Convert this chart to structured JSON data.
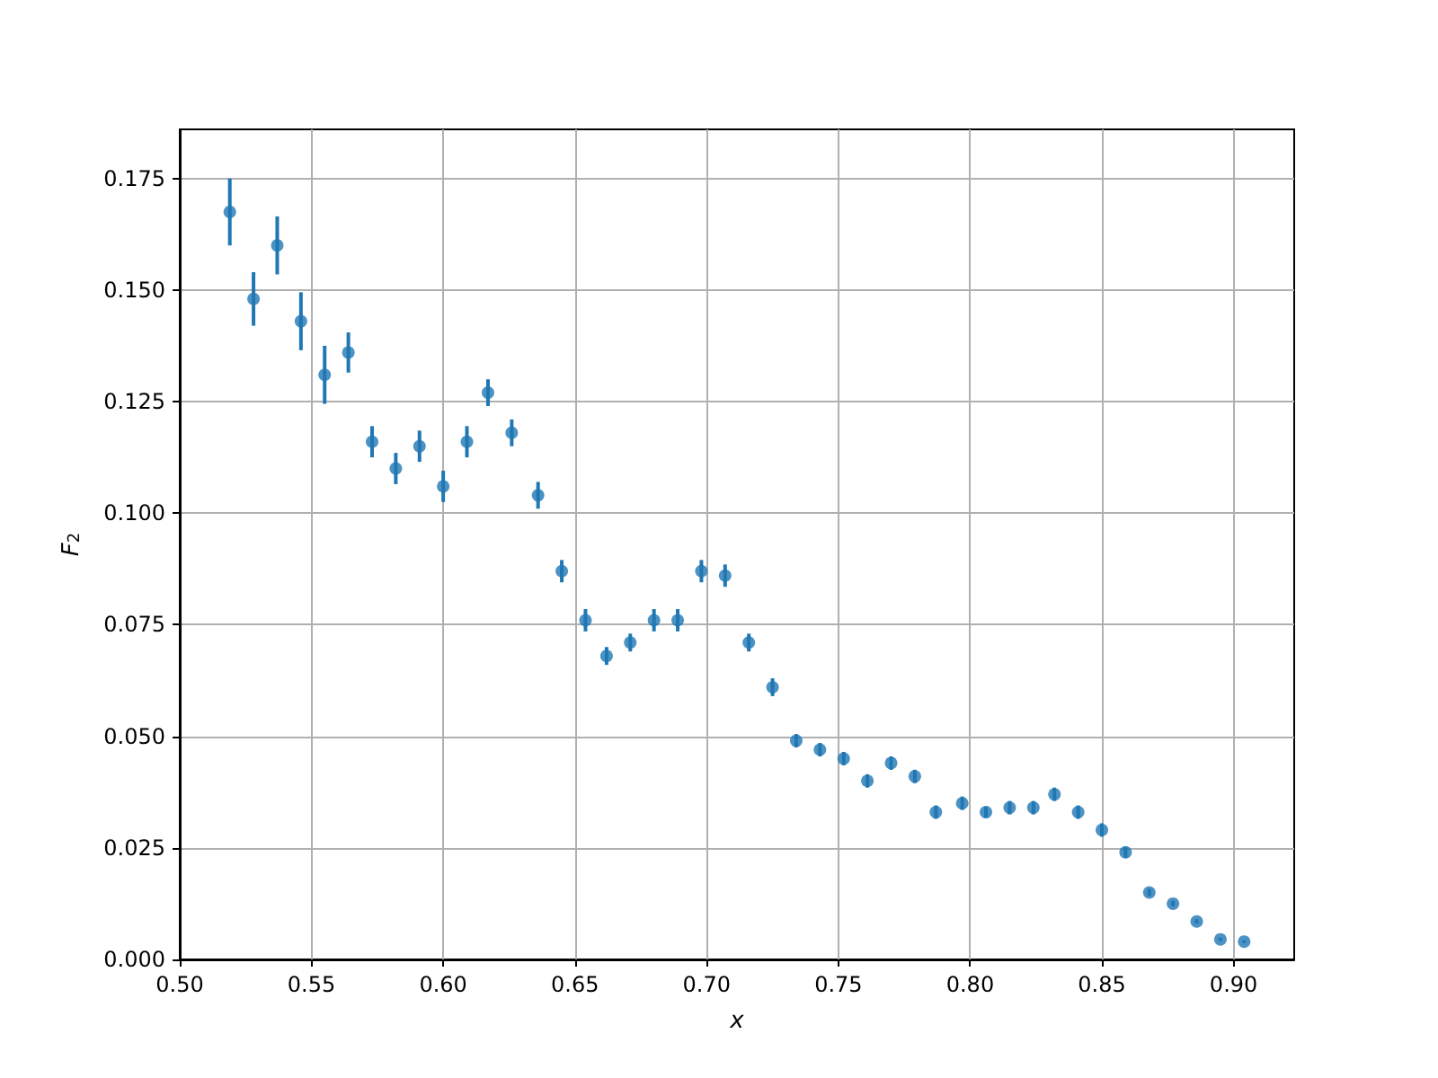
{
  "chart_data": {
    "type": "scatter",
    "xlabel": "x",
    "ylabel": "F$_{2}$",
    "color": "#1f77b4",
    "marker": "circle",
    "grid": true,
    "x": [
      0.519,
      0.528,
      0.537,
      0.546,
      0.555,
      0.564,
      0.573,
      0.582,
      0.591,
      0.6,
      0.609,
      0.617,
      0.626,
      0.636,
      0.645,
      0.654,
      0.662,
      0.671,
      0.68,
      0.689,
      0.698,
      0.707,
      0.716,
      0.725,
      0.734,
      0.743,
      0.752,
      0.761,
      0.77,
      0.779,
      0.787,
      0.797,
      0.806,
      0.815,
      0.824,
      0.832,
      0.841,
      0.85,
      0.859,
      0.868,
      0.877,
      0.886,
      0.895,
      0.904
    ],
    "values": [
      0.1675,
      0.148,
      0.16,
      0.143,
      0.131,
      0.136,
      0.116,
      0.11,
      0.115,
      0.106,
      0.116,
      0.127,
      0.118,
      0.104,
      0.087,
      0.076,
      0.068,
      0.071,
      0.076,
      0.076,
      0.087,
      0.086,
      0.071,
      0.061,
      0.049,
      0.047,
      0.045,
      0.04,
      0.044,
      0.041,
      0.033,
      0.035,
      0.033,
      0.034,
      0.034,
      0.037,
      0.033,
      0.029,
      0.024,
      0.015,
      0.0125,
      0.0085,
      0.0045,
      0.004
    ],
    "errors": [
      0.0075,
      0.006,
      0.0065,
      0.0065,
      0.0065,
      0.0045,
      0.0035,
      0.0035,
      0.0035,
      0.0035,
      0.0035,
      0.003,
      0.003,
      0.003,
      0.0025,
      0.0025,
      0.002,
      0.002,
      0.0025,
      0.0025,
      0.0025,
      0.0025,
      0.002,
      0.002,
      0.0015,
      0.0015,
      0.0015,
      0.0015,
      0.0015,
      0.0015,
      0.0015,
      0.0015,
      0.0012,
      0.0015,
      0.0015,
      0.0015,
      0.0015,
      0.0015,
      0.0012,
      0.0008,
      0.0006,
      0.0005,
      0.0004,
      0.0003
    ],
    "xlim": [
      0.5,
      0.923
    ],
    "xticks": [
      {
        "value": 0.5,
        "label": "0.50"
      },
      {
        "value": 0.55,
        "label": "0.55"
      },
      {
        "value": 0.6,
        "label": "0.60"
      },
      {
        "value": 0.65,
        "label": "0.65"
      },
      {
        "value": 0.7,
        "label": "0.70"
      },
      {
        "value": 0.75,
        "label": "0.75"
      },
      {
        "value": 0.8,
        "label": "0.80"
      },
      {
        "value": 0.85,
        "label": "0.85"
      },
      {
        "value": 0.9,
        "label": "0.90"
      }
    ],
    "ylim": [
      0,
      0.186
    ],
    "yticks": [
      {
        "value": 0,
        "label": "0.000"
      },
      {
        "value": 0.025,
        "label": "0.025"
      },
      {
        "value": 0.05,
        "label": "0.050"
      },
      {
        "value": 0.075,
        "label": "0.075"
      },
      {
        "value": 0.1,
        "label": "0.100"
      },
      {
        "value": 0.125,
        "label": "0.125"
      },
      {
        "value": 0.15,
        "label": "0.150"
      },
      {
        "value": 0.175,
        "label": "0.175"
      }
    ]
  }
}
